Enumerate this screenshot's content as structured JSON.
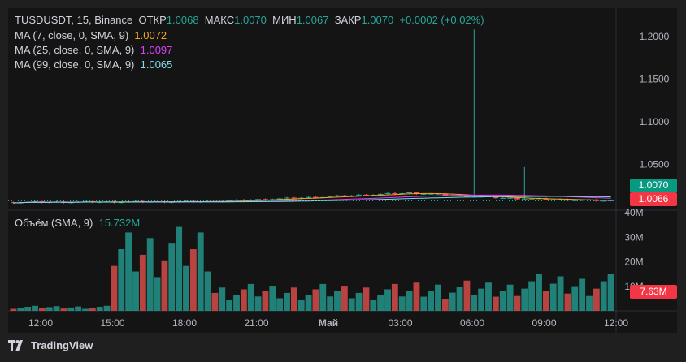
{
  "header": {
    "symbol": "TUSDUSDT",
    "interval": "15",
    "exchange": "Binance",
    "open_label": "ОТКР",
    "open_value": "1.0068",
    "high_label": "МАКС",
    "high_value": "1.0070",
    "low_label": "МИН",
    "low_value": "1.0067",
    "close_label": "ЗАКР",
    "close_value": "1.0070",
    "change": "+0.0002 (+0.02%)"
  },
  "indicators": [
    {
      "label": "MA (7, close, 0, SMA, 9)",
      "value": "1.0072",
      "color": "#f5a623"
    },
    {
      "label": "MA (25, close, 0, SMA, 9)",
      "value": "1.0097",
      "color": "#e040fb"
    },
    {
      "label": "MA (99, close, 0, SMA, 9)",
      "value": "1.0065",
      "color": "#80deea"
    }
  ],
  "volume_legend": {
    "label": "Объём (SMA, 9)",
    "value": "15.732M"
  },
  "price_tags": {
    "last": "1.0070",
    "other": "1.0066",
    "volume": "7.63M"
  },
  "footer": {
    "brand": "TradingView"
  },
  "colors": {
    "up": "#26a69a",
    "down": "#ef5350",
    "bg": "#141414"
  },
  "chart_data": {
    "type": "candlestick",
    "price_axis": {
      "ticks": [
        1.05,
        1.1,
        1.15,
        1.2
      ],
      "tick_labels": [
        "1.0500",
        "1.1000",
        "1.1500",
        "1.2000"
      ],
      "ylim": [
        0.998,
        1.224
      ]
    },
    "volume_axis": {
      "tick_labels": [
        "10M",
        "20M",
        "30M",
        "40M"
      ],
      "ticks": [
        10,
        20,
        30,
        40
      ],
      "ylim": [
        0,
        40
      ],
      "unit": "M"
    },
    "time_axis": {
      "labels": [
        "12:00",
        "15:00",
        "18:00",
        "21:00",
        "Май",
        "03:00",
        "06:00",
        "09:00",
        "12:00"
      ]
    },
    "annotations": [
      {
        "time_index": 27,
        "high": 1.2085,
        "note": "spike wick"
      },
      {
        "time_index": 30,
        "high": 1.0468,
        "note": "second wick"
      }
    ],
    "segments": [
      {
        "label": "12:00-18:00",
        "price_start": 1.0055,
        "price_end": 1.0058,
        "vol_level": 1.5
      },
      {
        "label": "18:00-21:00",
        "price_start": 1.0058,
        "price_end": 1.0062,
        "vol_level": 25
      },
      {
        "label": "21:00-03:00",
        "price_start": 1.0062,
        "price_end": 1.011,
        "vol_level": 8
      },
      {
        "label": "03:00-06:00",
        "price_start": 1.011,
        "price_end": 1.0165,
        "vol_level": 8
      },
      {
        "label": "06:00-09:00",
        "price_start": 1.0165,
        "price_end": 1.01,
        "vol_level": 9
      },
      {
        "label": "09:00-12:00",
        "price_start": 1.01,
        "price_end": 1.007,
        "vol_level": 11
      }
    ]
  }
}
